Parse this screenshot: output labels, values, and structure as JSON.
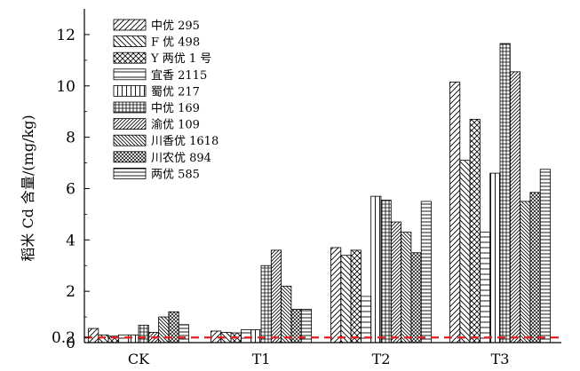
{
  "chart_data": {
    "type": "bar",
    "ylabel": "稻米 Cd 含量/(mg/kg)",
    "categories": [
      "CK",
      "T1",
      "T2",
      "T3"
    ],
    "ylim": [
      0,
      13
    ],
    "y_ticks": [
      "0",
      "0.2",
      "2",
      "4",
      "6",
      "8",
      "10",
      "12"
    ],
    "reference_line": {
      "value": 0.2,
      "style": "dashed",
      "color": "#e02020"
    },
    "legend_position": "top-left",
    "grid": false,
    "series": [
      {
        "name": "中优 295",
        "pattern": "diag-right",
        "values": [
          0.55,
          0.45,
          3.7,
          10.15
        ]
      },
      {
        "name": "F 优 498",
        "pattern": "diag-left",
        "values": [
          0.3,
          0.4,
          3.4,
          7.1
        ]
      },
      {
        "name": "Y 两优 1 号",
        "pattern": "crosshatch",
        "values": [
          0.25,
          0.38,
          3.6,
          8.7
        ]
      },
      {
        "name": "宜香 2115",
        "pattern": "horizontal",
        "values": [
          0.3,
          0.5,
          1.8,
          4.3
        ]
      },
      {
        "name": "蜀优 217",
        "pattern": "vertical",
        "values": [
          0.3,
          0.5,
          5.7,
          6.6
        ]
      },
      {
        "name": "中优 169",
        "pattern": "grid",
        "values": [
          0.68,
          3.0,
          5.55,
          11.65
        ]
      },
      {
        "name": "渝优 109",
        "pattern": "diag-right-dense",
        "values": [
          0.4,
          3.6,
          4.7,
          10.55
        ]
      },
      {
        "name": "川香优 1618",
        "pattern": "diag-left-dense",
        "values": [
          1.0,
          2.2,
          4.3,
          5.5
        ]
      },
      {
        "name": "川农优 894",
        "pattern": "crosshatch-dense",
        "values": [
          1.2,
          1.3,
          3.5,
          5.85
        ]
      },
      {
        "name": "两优 585",
        "pattern": "horizontal-dense",
        "values": [
          0.7,
          1.3,
          5.5,
          6.75
        ]
      }
    ]
  }
}
